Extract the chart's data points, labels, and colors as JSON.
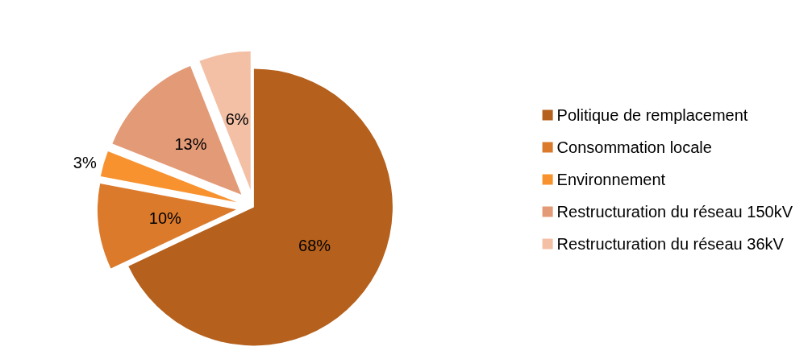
{
  "chart_data": {
    "type": "pie",
    "categories": [
      "Politique de remplacement",
      "Consommation locale",
      "Environnement",
      "Restructuration du réseau 150kV",
      "Restructuration du réseau 36kV"
    ],
    "values": [
      68,
      10,
      3,
      13,
      6
    ],
    "colors": [
      "#b5601c",
      "#dc7a2c",
      "#f7922e",
      "#e39a76",
      "#f3c0a6"
    ],
    "value_labels": [
      "68%",
      "10%",
      "3%",
      "13%",
      "6%"
    ],
    "legend": "right"
  }
}
